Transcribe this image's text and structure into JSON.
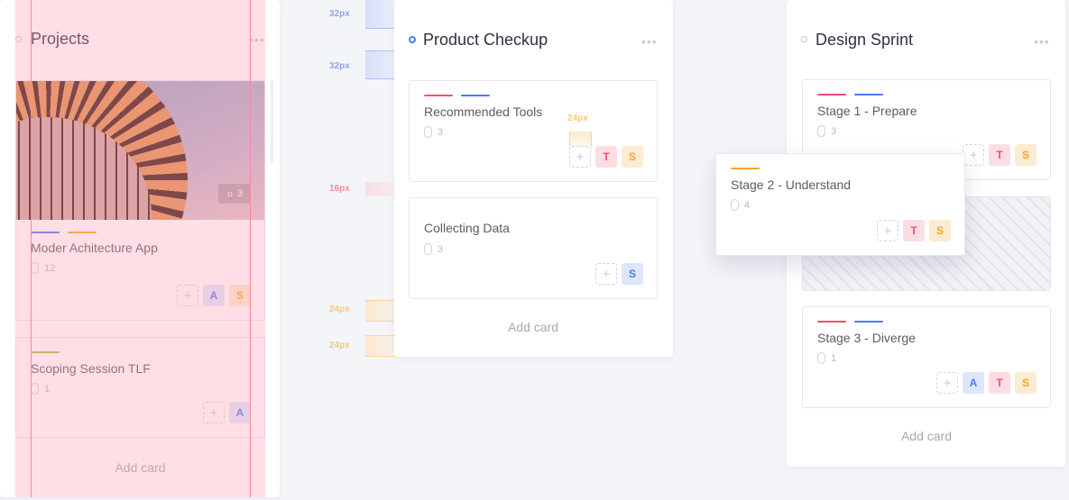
{
  "colors": {
    "red": "#f0506e",
    "blue": "#4a7cf0",
    "orange": "#f5a623",
    "green": "#a5c24a",
    "pink_overlay": "#ffb3c2"
  },
  "columns": [
    {
      "title": "Projects",
      "add_label": "Add card",
      "cards": [
        {
          "title": "Moder Achitecture App",
          "attachments": "12",
          "image_count": "3",
          "avatars": [
            "A",
            "S"
          ]
        },
        {
          "title": "Scoping Session TLF",
          "attachments": "1",
          "avatars": [
            "A"
          ]
        }
      ]
    },
    {
      "title": "Product Checkup",
      "add_label": "Add card",
      "cards": [
        {
          "title": "Recommended Tools",
          "attachments": "3",
          "avatars": [
            "T",
            "S"
          ]
        },
        {
          "title": "Collecting Data",
          "attachments": "3",
          "avatars": [
            "S"
          ]
        }
      ]
    },
    {
      "title": "Design Sprint",
      "add_label": "Add card",
      "cards": [
        {
          "title": "Stage 1 - Prepare",
          "attachments": "3",
          "avatars": [
            "T",
            "S"
          ]
        },
        {
          "title": "Stage 3 - Diverge",
          "attachments": "1",
          "avatars": [
            "A",
            "T",
            "S"
          ]
        }
      ]
    }
  ],
  "dragging_card": {
    "title": "Stage 2 - Understand",
    "attachments": "4",
    "avatars": [
      "T",
      "S"
    ]
  },
  "spacing": {
    "s1": "32px",
    "s2": "32px",
    "s3": "16px",
    "s4": "24px",
    "s5": "24px",
    "s6": "24px"
  },
  "plus": "+"
}
